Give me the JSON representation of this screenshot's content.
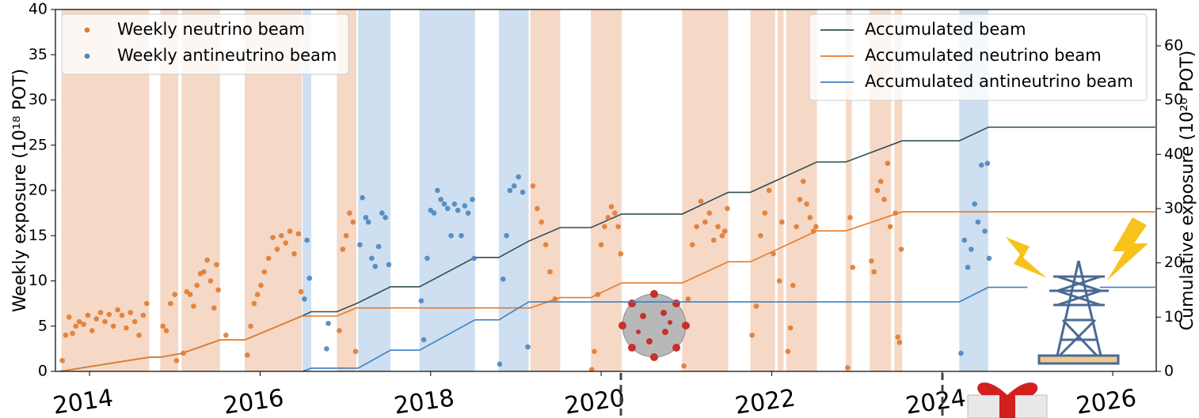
{
  "chart_data": {
    "type": "combo",
    "ylabel": "Weekly exposure (10¹⁸ POT)",
    "y2label": "Cumulative exposure (10²⁰ POT)",
    "xlim": [
      2013.6,
      2026.51
    ],
    "xticks": [
      2014,
      2016,
      2018,
      2020,
      2022,
      2024,
      2026
    ],
    "ylim": [
      0,
      40
    ],
    "yticks": [
      0,
      5,
      10,
      15,
      20,
      25,
      30,
      35,
      40
    ],
    "y2lim": [
      0,
      66.7
    ],
    "y2ticks": [
      0,
      10,
      20,
      30,
      40,
      50,
      60
    ],
    "scatter_legend_loc": "upper left",
    "line_legend_loc": "upper right",
    "bands": [
      {
        "start": 2013.67,
        "end": 2014.7,
        "color": "#f5d8c6"
      },
      {
        "start": 2014.83,
        "end": 2015.04,
        "color": "#f5d8c6"
      },
      {
        "start": 2015.08,
        "end": 2015.53,
        "color": "#f5d8c6"
      },
      {
        "start": 2015.82,
        "end": 2016.49,
        "color": "#f5d8c6"
      },
      {
        "start": 2016.5,
        "end": 2016.6,
        "color": "#cddff0"
      },
      {
        "start": 2016.9,
        "end": 2017.13,
        "color": "#f5d8c6"
      },
      {
        "start": 2017.15,
        "end": 2017.53,
        "color": "#cddff0"
      },
      {
        "start": 2017.87,
        "end": 2018.52,
        "color": "#cddff0"
      },
      {
        "start": 2018.8,
        "end": 2019.15,
        "color": "#cddff0"
      },
      {
        "start": 2019.17,
        "end": 2019.52,
        "color": "#f5d8c6"
      },
      {
        "start": 2019.88,
        "end": 2020.24,
        "color": "#f5d8c6"
      },
      {
        "start": 2020.95,
        "end": 2021.49,
        "color": "#f5d8c6"
      },
      {
        "start": 2021.75,
        "end": 2022.04,
        "color": "#f5d8c6"
      },
      {
        "start": 2022.07,
        "end": 2022.14,
        "color": "#f5d8c6"
      },
      {
        "start": 2022.17,
        "end": 2022.53,
        "color": "#f5d8c6"
      },
      {
        "start": 2022.87,
        "end": 2022.94,
        "color": "#f5d8c6"
      },
      {
        "start": 2023.15,
        "end": 2023.4,
        "color": "#f5d8c6"
      },
      {
        "start": 2023.44,
        "end": 2023.53,
        "color": "#f5d8c6"
      },
      {
        "start": 2024.2,
        "end": 2024.54,
        "color": "#cddff0"
      }
    ],
    "series": [
      {
        "name": "Weekly neutrino beam",
        "type": "scatter",
        "color": "#e07b30",
        "x": [
          2013.68,
          2013.72,
          2013.76,
          2013.8,
          2013.84,
          2013.88,
          2013.93,
          2013.98,
          2014.03,
          2014.08,
          2014.13,
          2014.18,
          2014.23,
          2014.28,
          2014.33,
          2014.38,
          2014.43,
          2014.48,
          2014.53,
          2014.58,
          2014.63,
          2014.67,
          2014.86,
          2014.9,
          2014.95,
          2015,
          2015.02,
          2015.1,
          2015.14,
          2015.18,
          2015.22,
          2015.26,
          2015.3,
          2015.34,
          2015.38,
          2015.42,
          2015.46,
          2015.49,
          2015.51,
          2015.6,
          2015.85,
          2015.89,
          2015.93,
          2015.97,
          2016.01,
          2016.05,
          2016.1,
          2016.15,
          2016.2,
          2016.25,
          2016.3,
          2016.35,
          2016.4,
          2016.45,
          2016.48,
          2016.93,
          2016.97,
          2017.01,
          2017.05,
          2017.09,
          2017.12,
          2019.2,
          2019.25,
          2019.3,
          2019.35,
          2019.4,
          2019.46,
          2019.89,
          2019.92,
          2019.96,
          2020,
          2020.04,
          2020.08,
          2020.12,
          2020.16,
          2020.2,
          2020.23,
          2020.97,
          2021.02,
          2021.07,
          2021.12,
          2021.17,
          2021.22,
          2021.27,
          2021.32,
          2021.37,
          2021.42,
          2021.45,
          2021.48,
          2021.77,
          2021.82,
          2021.87,
          2021.92,
          2021.97,
          2022.02,
          2022.09,
          2022.12,
          2022.19,
          2022.22,
          2022.25,
          2022.29,
          2022.33,
          2022.37,
          2022.41,
          2022.45,
          2022.49,
          2022.52,
          2022.89,
          2022.92,
          2022.95,
          2023.17,
          2023.2,
          2023.24,
          2023.28,
          2023.32,
          2023.36,
          2023.39,
          2023.45,
          2023.48,
          2023.5,
          2023.52
        ],
        "values": [
          1.2,
          4,
          6,
          4.2,
          5,
          5.5,
          5.2,
          6.2,
          4.5,
          5.8,
          6.5,
          5.5,
          6.3,
          5,
          6.8,
          6.2,
          4.8,
          6.5,
          5.5,
          4,
          6.2,
          7.5,
          5,
          4.5,
          7.5,
          8.5,
          1.2,
          2,
          8.8,
          8.5,
          7.2,
          9.5,
          10.8,
          11,
          12.3,
          10,
          7,
          11.8,
          9,
          4,
          1.8,
          5,
          7.5,
          8.5,
          9.5,
          11,
          12.5,
          14.8,
          13.5,
          15,
          14.2,
          15.5,
          13,
          15.2,
          8.8,
          4.5,
          13.5,
          15,
          17.5,
          16.5,
          2.2,
          20.5,
          18,
          16.5,
          14,
          11,
          8,
          0.2,
          2.2,
          8.5,
          14,
          16,
          17,
          18.2,
          17.5,
          16,
          13,
          0.6,
          8,
          14,
          16,
          18.8,
          16.5,
          17.5,
          14.5,
          16,
          15,
          15.5,
          18,
          4,
          7.2,
          15,
          17.5,
          20,
          13,
          10,
          16.5,
          2.2,
          4.8,
          9.5,
          16,
          19,
          21,
          18.5,
          17,
          15.5,
          16,
          0.4,
          17,
          11.5,
          12.2,
          11,
          20,
          21,
          19,
          23,
          16,
          17.5,
          3.8,
          3.2,
          13.5
        ]
      },
      {
        "name": "Weekly antineutrino beam",
        "type": "scatter",
        "color": "#4a86bf",
        "x": [
          2016.52,
          2016.55,
          2016.58,
          2016.78,
          2016.8,
          2017.17,
          2017.2,
          2017.24,
          2017.27,
          2017.31,
          2017.35,
          2017.39,
          2017.43,
          2017.47,
          2017.51,
          2017.89,
          2017.92,
          2017.96,
          2018,
          2018.04,
          2018.08,
          2018.12,
          2018.16,
          2018.2,
          2018.24,
          2018.28,
          2018.32,
          2018.36,
          2018.4,
          2018.44,
          2018.49,
          2018.51,
          2018.81,
          2018.85,
          2018.89,
          2018.93,
          2018.98,
          2019.03,
          2019.08,
          2019.14,
          2024.22,
          2024.26,
          2024.3,
          2024.34,
          2024.38,
          2024.42,
          2024.46,
          2024.5,
          2024.53,
          2024.55
        ],
        "values": [
          8,
          14.5,
          10.3,
          2.5,
          5.3,
          14,
          19.2,
          17,
          16.5,
          12.5,
          11.6,
          13.8,
          17.5,
          17,
          11.8,
          7.8,
          3.5,
          12.5,
          17.8,
          17.5,
          20,
          19,
          18.5,
          18,
          15,
          18.5,
          17.8,
          15,
          18.3,
          17.5,
          19,
          12.5,
          0.8,
          10.2,
          15,
          20,
          20.5,
          21.5,
          19.8,
          2.7,
          2,
          14.5,
          11.5,
          13.5,
          18.5,
          16.5,
          22.8,
          15.5,
          23,
          12.5
        ]
      },
      {
        "name": "Accumulated beam",
        "type": "line",
        "axis": "y2",
        "color": "#2f4f4f",
        "x": [
          2013.65,
          2014.7,
          2014.83,
          2015.04,
          2015.08,
          2015.53,
          2015.82,
          2016.49,
          2016.6,
          2016.9,
          2017.13,
          2017.53,
          2017.87,
          2018.52,
          2018.8,
          2019.15,
          2019.52,
          2019.88,
          2020.24,
          2020.95,
          2021.49,
          2021.75,
          2022.53,
          2022.87,
          2023.53,
          2024.2,
          2024.54,
          2026.5
        ],
        "values": [
          0,
          2.6,
          2.6,
          3.2,
          3.3,
          5.8,
          5.8,
          10.2,
          11,
          11,
          12.5,
          15.6,
          15.6,
          21,
          21,
          24,
          26.5,
          26.5,
          29,
          29,
          33,
          33,
          38.6,
          38.6,
          42.5,
          42.5,
          45,
          45
        ]
      },
      {
        "name": "Accumulated neutrino beam",
        "type": "line",
        "axis": "y2",
        "color": "#e67a28",
        "x": [
          2013.65,
          2014.7,
          2014.83,
          2015.04,
          2015.08,
          2015.53,
          2015.82,
          2016.49,
          2016.9,
          2017.13,
          2019.17,
          2019.52,
          2019.88,
          2020.24,
          2020.95,
          2021.49,
          2021.75,
          2022.53,
          2022.87,
          2023.53,
          2026.5
        ],
        "values": [
          0,
          2.6,
          2.6,
          3.2,
          3.3,
          5.8,
          5.8,
          10.2,
          10.2,
          11.7,
          11.7,
          13.6,
          13.6,
          16.3,
          16.3,
          20.2,
          20.2,
          25.9,
          25.9,
          29.4,
          29.4
        ]
      },
      {
        "name": "Accumulated antineutrino beam",
        "type": "line",
        "axis": "y2",
        "color": "#3f80c0",
        "x": [
          2016.5,
          2016.6,
          2017.15,
          2017.53,
          2017.87,
          2018.52,
          2018.8,
          2019.15,
          2024.2,
          2024.54,
          2025.0,
          2025.2,
          2025.85,
          2026.5
        ],
        "values": [
          0,
          0.6,
          0.6,
          3.9,
          3.9,
          9.5,
          9.5,
          12.8,
          12.8,
          15.5,
          15.5,
          null,
          15.5,
          15.5
        ]
      }
    ]
  }
}
